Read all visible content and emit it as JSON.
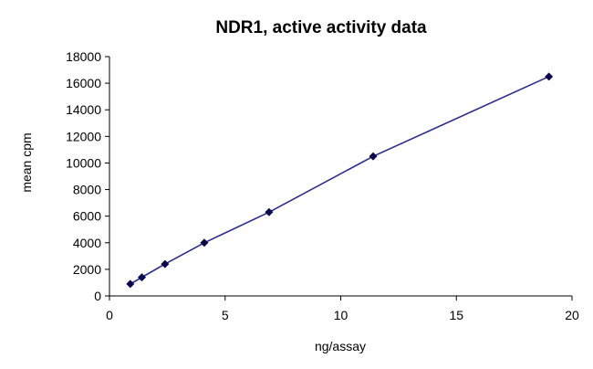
{
  "chart_data": {
    "type": "line",
    "title": "NDR1, active activity data",
    "xlabel": "ng/assay",
    "ylabel": "mean cpm",
    "xlim": [
      0,
      20
    ],
    "ylim": [
      0,
      18000
    ],
    "x_ticks": [
      0,
      5,
      10,
      15,
      20
    ],
    "y_ticks": [
      0,
      2000,
      4000,
      6000,
      8000,
      10000,
      12000,
      14000,
      16000,
      18000
    ],
    "x_tick_labels": [
      "0",
      "5",
      "10",
      "15",
      "20"
    ],
    "y_tick_labels": [
      "0",
      "2000",
      "4000",
      "6000",
      "8000",
      "10000",
      "12000",
      "14000",
      "16000",
      "18000"
    ],
    "grid": false,
    "legend": "none",
    "series": [
      {
        "color": "#2b2b8f",
        "marker": "diamond",
        "marker_color": "#0a0a4a",
        "x": [
          0.9,
          1.4,
          2.4,
          4.1,
          6.9,
          11.4,
          19.0
        ],
        "y": [
          900,
          1400,
          2400,
          4000,
          6300,
          10500,
          16500
        ]
      }
    ]
  }
}
